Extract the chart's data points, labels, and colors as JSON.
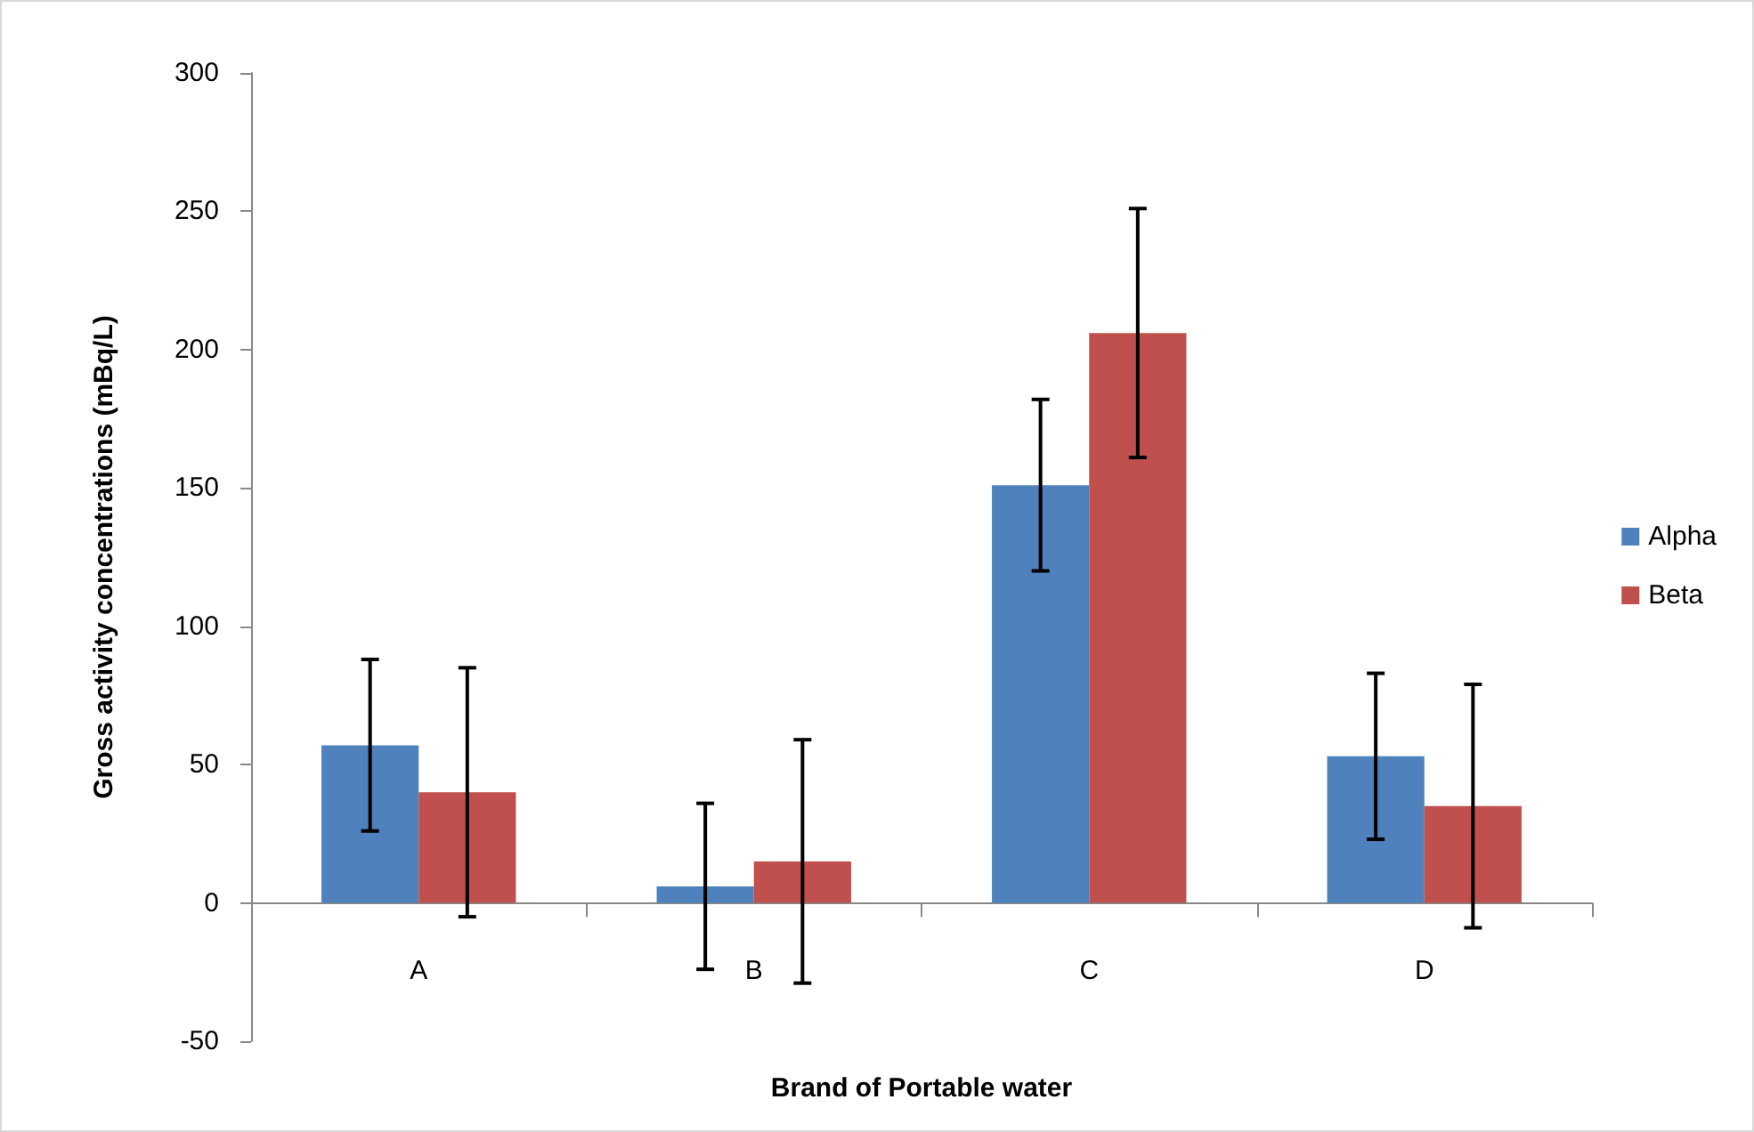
{
  "chart_data": {
    "type": "bar",
    "xlabel": "Brand of Portable water",
    "ylabel": "Gross activity concentrations (mBq/L)",
    "categories": [
      "A",
      "B",
      "C",
      "D"
    ],
    "series": [
      {
        "name": "Alpha",
        "color": "#4f81bd",
        "values": [
          57,
          6,
          151,
          53
        ],
        "errors": [
          31,
          30,
          31,
          30
        ]
      },
      {
        "name": "Beta",
        "color": "#c0504d",
        "values": [
          40,
          15,
          206,
          35
        ],
        "errors": [
          45,
          44,
          45,
          44
        ]
      }
    ],
    "ylim": [
      -50,
      300
    ],
    "yticks": [
      -50,
      0,
      50,
      100,
      150,
      200,
      250,
      300
    ],
    "legend": "right"
  }
}
